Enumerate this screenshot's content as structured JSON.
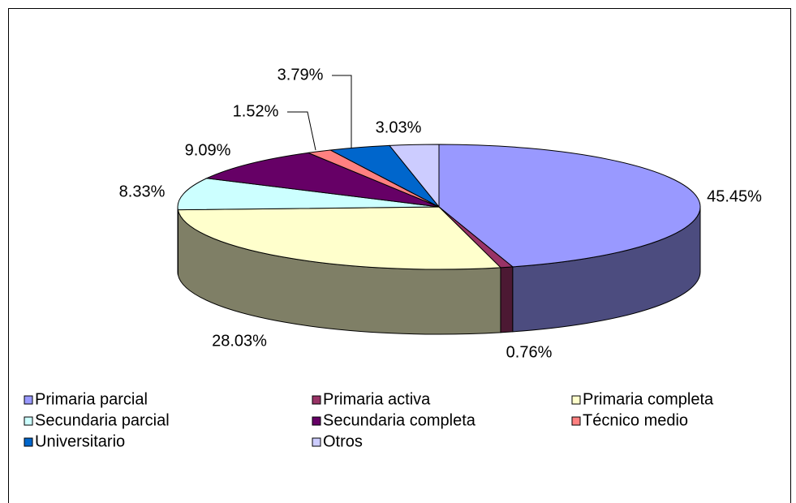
{
  "chart_data": {
    "type": "pie3d",
    "categories": [
      "Primaria parcial",
      "Primaria activa",
      "Primaria completa",
      "Secundaria parcial",
      "Secundaria completa",
      "Técnico medio",
      "Universitario",
      "Otros"
    ],
    "values": [
      45.45,
      0.76,
      28.03,
      8.33,
      9.09,
      1.52,
      3.79,
      3.03
    ],
    "value_labels": [
      "45.45%",
      "0.76%",
      "28.03%",
      "8.33%",
      "9.09%",
      "1.52%",
      "3.79%",
      "3.03%"
    ],
    "colors": [
      "#9999ff",
      "#993366",
      "#ffffcc",
      "#ccffff",
      "#660066",
      "#ff8080",
      "#0066cc",
      "#ccccff"
    ],
    "legend": "bottom"
  }
}
